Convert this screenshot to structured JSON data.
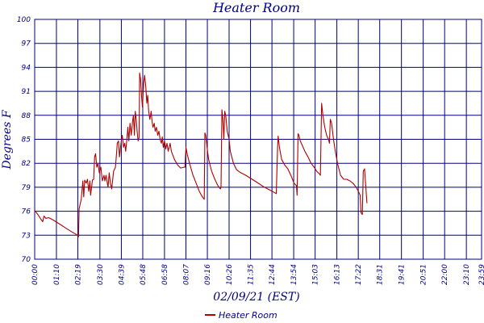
{
  "chart_data": {
    "type": "line",
    "title": "Heater Room",
    "xlabel": "02/09/21 (EST)",
    "ylabel": "Degrees F",
    "grid": true,
    "legend_position": "bottom-center",
    "xlim_minutes": [
      0,
      1439
    ],
    "ylim": [
      70,
      100
    ],
    "x_ticks": [
      {
        "label": "00:00",
        "minute": 0
      },
      {
        "label": "01:10",
        "minute": 70
      },
      {
        "label": "02:19",
        "minute": 139
      },
      {
        "label": "03:30",
        "minute": 210
      },
      {
        "label": "04:39",
        "minute": 279
      },
      {
        "label": "05:48",
        "minute": 348
      },
      {
        "label": "06:58",
        "minute": 418
      },
      {
        "label": "08:07",
        "minute": 487
      },
      {
        "label": "09:16",
        "minute": 556
      },
      {
        "label": "10:26",
        "minute": 626
      },
      {
        "label": "11:35",
        "minute": 695
      },
      {
        "label": "12:44",
        "minute": 764
      },
      {
        "label": "13:54",
        "minute": 834
      },
      {
        "label": "15:03",
        "minute": 903
      },
      {
        "label": "16:13",
        "minute": 973
      },
      {
        "label": "17:22",
        "minute": 1042
      },
      {
        "label": "18:31",
        "minute": 1111
      },
      {
        "label": "19:41",
        "minute": 1181
      },
      {
        "label": "20:51",
        "minute": 1251
      },
      {
        "label": "22:00",
        "minute": 1320
      },
      {
        "label": "23:10",
        "minute": 1390
      },
      {
        "label": "23:59",
        "minute": 1439
      }
    ],
    "y_ticks": [
      {
        "label": "70",
        "value": 70
      },
      {
        "label": "73",
        "value": 73
      },
      {
        "label": "76",
        "value": 76
      },
      {
        "label": "79",
        "value": 79
      },
      {
        "label": "82",
        "value": 82
      },
      {
        "label": "85",
        "value": 85
      },
      {
        "label": "88",
        "value": 88
      },
      {
        "label": "91",
        "value": 91
      },
      {
        "label": "94",
        "value": 94
      },
      {
        "label": "97",
        "value": 97
      },
      {
        "label": "100",
        "value": 100
      }
    ],
    "series": [
      {
        "name": "Heater Room",
        "color": "#b00000",
        "points": [
          [
            0,
            76.1
          ],
          [
            12,
            75.5
          ],
          [
            20,
            75.0
          ],
          [
            26,
            74.7
          ],
          [
            30,
            75.4
          ],
          [
            36,
            75.1
          ],
          [
            45,
            75.2
          ],
          [
            60,
            74.9
          ],
          [
            80,
            74.4
          ],
          [
            100,
            73.9
          ],
          [
            120,
            73.4
          ],
          [
            134,
            73.1
          ],
          [
            141,
            72.8
          ],
          [
            143,
            76.3
          ],
          [
            150,
            77.5
          ],
          [
            155,
            79.8
          ],
          [
            158,
            77.8
          ],
          [
            161,
            79.9
          ],
          [
            166,
            79.5
          ],
          [
            170,
            80.0
          ],
          [
            174,
            78.5
          ],
          [
            178,
            79.8
          ],
          [
            180,
            78.0
          ],
          [
            186,
            79.9
          ],
          [
            190,
            80.0
          ],
          [
            193,
            82.8
          ],
          [
            196,
            83.2
          ],
          [
            200,
            81.5
          ],
          [
            204,
            82.0
          ],
          [
            208,
            80.8
          ],
          [
            213,
            81.5
          ],
          [
            218,
            79.8
          ],
          [
            223,
            80.5
          ],
          [
            226,
            79.8
          ],
          [
            230,
            80.5
          ],
          [
            236,
            79.0
          ],
          [
            240,
            80.8
          ],
          [
            244,
            79.5
          ],
          [
            248,
            78.8
          ],
          [
            254,
            81.0
          ],
          [
            260,
            81.5
          ],
          [
            263,
            83.0
          ],
          [
            266,
            84.5
          ],
          [
            270,
            84.8
          ],
          [
            273,
            82.8
          ],
          [
            278,
            84.5
          ],
          [
            282,
            85.5
          ],
          [
            286,
            84.0
          ],
          [
            290,
            84.5
          ],
          [
            293,
            83.5
          ],
          [
            297,
            85.0
          ],
          [
            300,
            86.5
          ],
          [
            303,
            84.8
          ],
          [
            307,
            87.0
          ],
          [
            311,
            85.5
          ],
          [
            315,
            87.2
          ],
          [
            318,
            88.0
          ],
          [
            321,
            85.5
          ],
          [
            324,
            88.5
          ],
          [
            327,
            87.5
          ],
          [
            330,
            86.0
          ],
          [
            333,
            84.8
          ],
          [
            336,
            85.2
          ],
          [
            338,
            93.3
          ],
          [
            341,
            92.5
          ],
          [
            344,
            90.5
          ],
          [
            347,
            89.0
          ],
          [
            351,
            92.0
          ],
          [
            354,
            93.0
          ],
          [
            358,
            91.5
          ],
          [
            361,
            89.5
          ],
          [
            364,
            90.5
          ],
          [
            367,
            88.5
          ],
          [
            371,
            87.5
          ],
          [
            375,
            88.5
          ],
          [
            378,
            87.2
          ],
          [
            381,
            86.5
          ],
          [
            385,
            87.0
          ],
          [
            388,
            86.0
          ],
          [
            392,
            86.5
          ],
          [
            396,
            85.5
          ],
          [
            400,
            86.0
          ],
          [
            404,
            85.0
          ],
          [
            408,
            84.5
          ],
          [
            411,
            85.3
          ],
          [
            414,
            84.0
          ],
          [
            418,
            84.8
          ],
          [
            422,
            83.8
          ],
          [
            426,
            84.5
          ],
          [
            430,
            83.5
          ],
          [
            436,
            84.5
          ],
          [
            440,
            83.5
          ],
          [
            450,
            82.5
          ],
          [
            460,
            81.8
          ],
          [
            470,
            81.4
          ],
          [
            480,
            81.5
          ],
          [
            484,
            81.5
          ],
          [
            487,
            84.0
          ],
          [
            492,
            83.0
          ],
          [
            500,
            81.8
          ],
          [
            510,
            80.5
          ],
          [
            520,
            79.5
          ],
          [
            530,
            78.5
          ],
          [
            540,
            77.8
          ],
          [
            546,
            77.5
          ],
          [
            548,
            85.8
          ],
          [
            551,
            85.5
          ],
          [
            555,
            84.0
          ],
          [
            560,
            82.5
          ],
          [
            570,
            81.0
          ],
          [
            580,
            80.0
          ],
          [
            590,
            79.2
          ],
          [
            598,
            78.8
          ],
          [
            600,
            79.0
          ],
          [
            603,
            88.7
          ],
          [
            606,
            87.5
          ],
          [
            609,
            85.0
          ],
          [
            612,
            88.5
          ],
          [
            615,
            88.0
          ],
          [
            620,
            86.0
          ],
          [
            626,
            85.0
          ],
          [
            630,
            83.5
          ],
          [
            640,
            82.0
          ],
          [
            650,
            81.2
          ],
          [
            660,
            80.9
          ],
          [
            680,
            80.5
          ],
          [
            700,
            80.0
          ],
          [
            720,
            79.5
          ],
          [
            740,
            79.0
          ],
          [
            760,
            78.6
          ],
          [
            778,
            78.2
          ],
          [
            782,
            84.0
          ],
          [
            784,
            85.4
          ],
          [
            788,
            84.0
          ],
          [
            795,
            82.5
          ],
          [
            805,
            81.8
          ],
          [
            815,
            81.3
          ],
          [
            825,
            80.5
          ],
          [
            835,
            79.5
          ],
          [
            843,
            79.2
          ],
          [
            845,
            78.0
          ],
          [
            848,
            85.7
          ],
          [
            851,
            85.5
          ],
          [
            855,
            84.8
          ],
          [
            862,
            84.2
          ],
          [
            870,
            83.5
          ],
          [
            880,
            82.8
          ],
          [
            890,
            82.0
          ],
          [
            900,
            81.5
          ],
          [
            908,
            81.0
          ],
          [
            916,
            80.7
          ],
          [
            920,
            80.5
          ],
          [
            924,
            89.5
          ],
          [
            928,
            88.0
          ],
          [
            934,
            86.5
          ],
          [
            940,
            85.5
          ],
          [
            946,
            85.0
          ],
          [
            949,
            84.5
          ],
          [
            952,
            87.5
          ],
          [
            956,
            87.0
          ],
          [
            962,
            85.0
          ],
          [
            968,
            83.5
          ],
          [
            975,
            82.0
          ],
          [
            985,
            80.5
          ],
          [
            995,
            80.0
          ],
          [
            1005,
            80.0
          ],
          [
            1015,
            79.8
          ],
          [
            1025,
            79.5
          ],
          [
            1035,
            79.0
          ],
          [
            1042,
            78.5
          ],
          [
            1048,
            78.0
          ],
          [
            1051,
            75.8
          ],
          [
            1055,
            75.6
          ],
          [
            1058,
            81.0
          ],
          [
            1062,
            81.3
          ],
          [
            1065,
            79.8
          ],
          [
            1068,
            78.0
          ],
          [
            1070,
            77.0
          ]
        ]
      }
    ]
  }
}
